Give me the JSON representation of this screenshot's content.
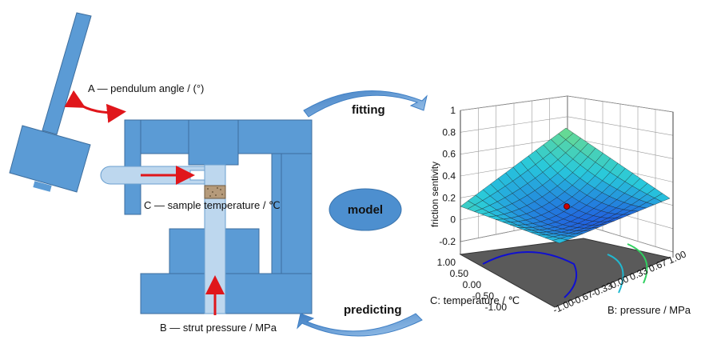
{
  "labels": {
    "pendulum": "A — pendulum angle / (°)",
    "temperature": "C — sample temperature / ℃",
    "pressure": "B — strut pressure / MPa",
    "fitting": "fitting",
    "predicting": "predicting",
    "model": "model"
  },
  "colors": {
    "device_blue": "#5b9bd5",
    "device_light": "#bdd7ee",
    "arrow_red": "#e0161b",
    "ellipse_fill": "#4d8fcf",
    "curved_arrow": "#4a86c8",
    "surface_low": "#1c1ce0",
    "surface_high": "#7de07a",
    "floor_gray": "#5a5a5a",
    "marker": "#cc0000"
  },
  "icons": {
    "pendulum": "pendulum-hammer-icon",
    "sample": "sample-holder-icon"
  },
  "chart_data": {
    "type": "surface3d",
    "zlabel": "friction sentivity",
    "xlabel": "B: pressure / MPa",
    "ylabel": "C: temperature / ℃",
    "z_ticks": [
      "1",
      "0.8",
      "0.6",
      "0.4",
      "0.2",
      "0",
      "-0.2"
    ],
    "b_ticks": [
      "-1.00",
      "-0.67",
      "-0.33",
      "0.00",
      "0.33",
      "0.67",
      "1.00"
    ],
    "c_ticks": [
      "-1.00",
      "-0.50",
      "0.00",
      "0.50",
      "1.00"
    ],
    "zlim": [
      -0.2,
      1
    ],
    "surface_range": {
      "min": 0.0,
      "max": 0.8
    },
    "center_point": {
      "B": 0.0,
      "C": 0.0,
      "value": 0.0
    }
  }
}
